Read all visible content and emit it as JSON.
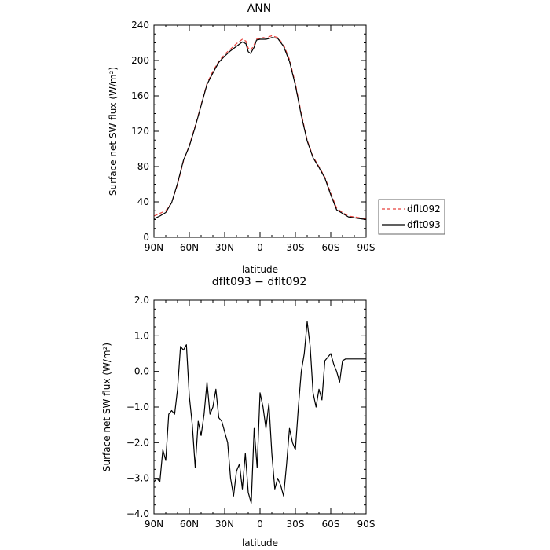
{
  "chart_data": [
    {
      "type": "line",
      "title": "ANN",
      "xlabel": "latitude",
      "ylabel": "Surface net SW flux (W/m²)",
      "xlim": [
        90,
        -90
      ],
      "ylim": [
        0,
        240
      ],
      "x_ticks": [
        90,
        60,
        30,
        0,
        -30,
        -60,
        -90
      ],
      "x_tick_labels": [
        "90N",
        "60N",
        "30N",
        "0",
        "30S",
        "60S",
        "90S"
      ],
      "y_ticks": [
        0,
        40,
        80,
        120,
        160,
        200,
        240
      ],
      "y_tick_labels": [
        "0",
        "40",
        "80",
        "120",
        "160",
        "200",
        "240"
      ],
      "legend_position": "right-outside",
      "series": [
        {
          "name": "dflt092",
          "color": "#e8413c",
          "style": "dashed",
          "x": [
            90,
            85,
            80,
            75,
            70,
            65,
            60,
            55,
            50,
            45,
            40,
            35,
            30,
            25,
            20,
            15,
            12,
            10,
            8,
            5,
            3,
            0,
            -3,
            -5,
            -8,
            -10,
            -15,
            -20,
            -25,
            -30,
            -35,
            -40,
            -45,
            -50,
            -55,
            -60,
            -65,
            -70,
            -75,
            -80,
            -85,
            -90
          ],
          "values": [
            24,
            27,
            30,
            39,
            60,
            86,
            104,
            126,
            150,
            174,
            188,
            199,
            207,
            213,
            219,
            224,
            222,
            214,
            211,
            218,
            224,
            225,
            226,
            225,
            227,
            228,
            226,
            218,
            201,
            174,
            140,
            110,
            91,
            80,
            68,
            50,
            33,
            28,
            24,
            23,
            22,
            21
          ]
        },
        {
          "name": "dflt093",
          "color": "#000000",
          "style": "solid",
          "x": [
            90,
            85,
            80,
            75,
            70,
            65,
            60,
            55,
            50,
            45,
            40,
            35,
            30,
            25,
            20,
            15,
            12,
            10,
            8,
            5,
            3,
            0,
            -3,
            -5,
            -8,
            -10,
            -15,
            -20,
            -25,
            -30,
            -35,
            -40,
            -45,
            -50,
            -55,
            -60,
            -65,
            -70,
            -75,
            -80,
            -85,
            -90
          ],
          "values": [
            21,
            24,
            28,
            39,
            61,
            87,
            103,
            125,
            149,
            173,
            186,
            198,
            205,
            211,
            216,
            221,
            219,
            210,
            208,
            215,
            223,
            224,
            224,
            224,
            225,
            226,
            225,
            216,
            199,
            172,
            138,
            109,
            90,
            79,
            67,
            48,
            31,
            27,
            23,
            22,
            21,
            20
          ]
        }
      ]
    },
    {
      "type": "line",
      "title": "dflt093 − dflt092",
      "xlabel": "latitude",
      "ylabel": "Surface net SW flux (W/m²)",
      "xlim": [
        90,
        -90
      ],
      "ylim": [
        -4.0,
        2.0
      ],
      "x_ticks": [
        90,
        60,
        30,
        0,
        -30,
        -60,
        -90
      ],
      "x_tick_labels": [
        "90N",
        "60N",
        "30N",
        "0",
        "30S",
        "60S",
        "90S"
      ],
      "y_ticks": [
        -4.0,
        -3.0,
        -2.0,
        -1.0,
        0.0,
        1.0,
        2.0
      ],
      "y_tick_labels": [
        "−4.0",
        "−3.0",
        "−2.0",
        "−1.0",
        "0.0",
        "1.0",
        "2.0"
      ],
      "series": [
        {
          "color": "#000000",
          "style": "solid",
          "x": [
            90,
            87.5,
            85,
            82.5,
            80,
            77.5,
            75,
            72.5,
            70,
            67.5,
            65,
            62.5,
            60,
            57.5,
            55,
            52.5,
            50,
            47.5,
            45,
            42.5,
            40,
            37.5,
            35,
            32.5,
            30,
            27.5,
            25,
            22.5,
            20,
            17.5,
            15,
            12.5,
            10,
            7.5,
            5,
            2.5,
            0,
            -2.5,
            -5,
            -7.5,
            -10,
            -12.5,
            -15,
            -17.5,
            -20,
            -22.5,
            -25,
            -27.5,
            -30,
            -32.5,
            -35,
            -37.5,
            -40,
            -42.5,
            -45,
            -47.5,
            -50,
            -52.5,
            -55,
            -57.5,
            -60,
            -62.5,
            -65,
            -67.5,
            -70,
            -72.5,
            -75,
            -77.5,
            -80,
            -82.5,
            -85,
            -87.5,
            -90
          ],
          "values": [
            -3.1,
            -3.0,
            -3.1,
            -2.2,
            -2.5,
            -1.2,
            -1.1,
            -1.2,
            -0.5,
            0.7,
            0.6,
            0.75,
            -0.7,
            -1.5,
            -2.7,
            -1.4,
            -1.8,
            -1.2,
            -0.3,
            -1.2,
            -1.0,
            -0.5,
            -1.3,
            -1.4,
            -1.7,
            -2.0,
            -3.0,
            -3.5,
            -2.8,
            -2.6,
            -3.3,
            -2.3,
            -3.4,
            -3.7,
            -1.6,
            -2.7,
            -0.6,
            -1.0,
            -1.6,
            -0.9,
            -2.3,
            -3.3,
            -3.0,
            -3.2,
            -3.5,
            -2.6,
            -1.6,
            -2.0,
            -2.2,
            -1.0,
            0.0,
            0.5,
            1.4,
            0.7,
            -0.6,
            -1.0,
            -0.5,
            -0.8,
            0.3,
            0.4,
            0.5,
            0.2,
            0.0,
            -0.3,
            0.3,
            0.35,
            0.35,
            0.35,
            0.35,
            0.35,
            0.35,
            0.35,
            0.35
          ]
        }
      ]
    }
  ]
}
